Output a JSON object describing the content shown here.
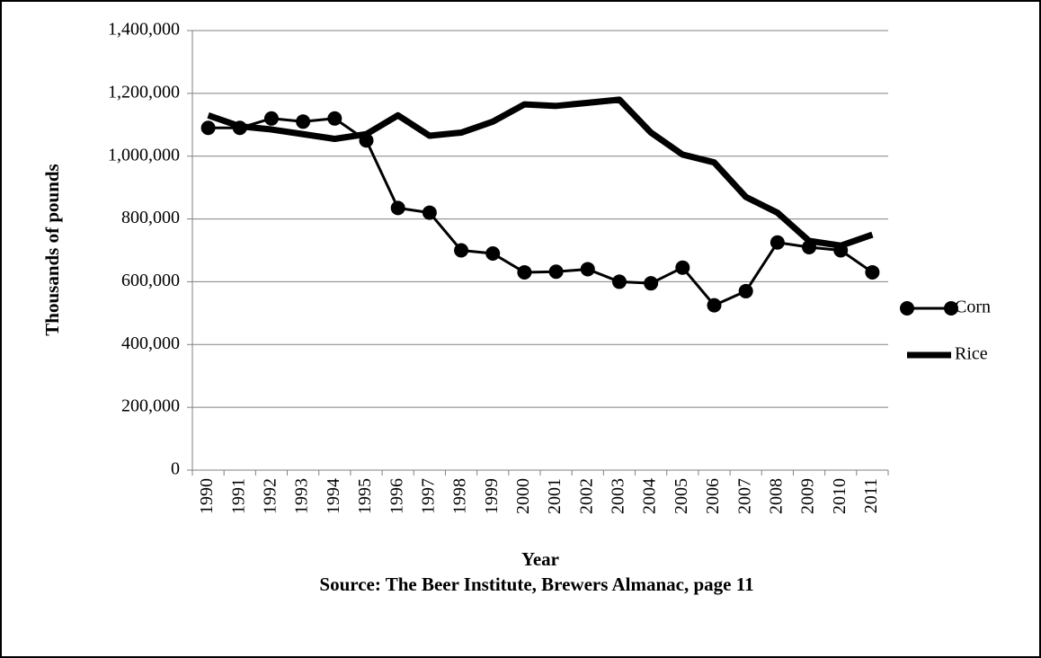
{
  "chart_data": {
    "type": "line",
    "x_label": "Year",
    "y_label": "Thousands of pounds",
    "source": "Source: The Beer Institute, Brewers Almanac, page 11",
    "categories": [
      "1990",
      "1991",
      "1992",
      "1993",
      "1994",
      "1995",
      "1996",
      "1997",
      "1998",
      "1999",
      "2000",
      "2001",
      "2002",
      "2003",
      "2004",
      "2005",
      "2006",
      "2007",
      "2008",
      "2009",
      "2010",
      "2011"
    ],
    "series": [
      {
        "name": "Corn",
        "color": "#000000",
        "marker": true,
        "values": [
          1090000,
          1090000,
          1120000,
          1110000,
          1120000,
          1050000,
          835000,
          820000,
          700000,
          690000,
          630000,
          632000,
          640000,
          600000,
          595000,
          645000,
          525000,
          570000,
          725000,
          710000,
          700000,
          630000
        ]
      },
      {
        "name": "Rice",
        "color": "#000000",
        "marker": false,
        "values": [
          1130000,
          1095000,
          1085000,
          1070000,
          1055000,
          1070000,
          1130000,
          1065000,
          1075000,
          1110000,
          1165000,
          1160000,
          1170000,
          1180000,
          1075000,
          1005000,
          980000,
          870000,
          820000,
          730000,
          715000,
          750000
        ]
      }
    ],
    "ylim": [
      0,
      1400000
    ],
    "yticks": [
      0,
      {
        "value": 200000,
        "label": "200,000"
      },
      {
        "value": 400000,
        "label": "400,000"
      },
      {
        "value": 600000,
        "label": "600,000"
      },
      {
        "value": 800000,
        "label": "800,000"
      },
      {
        "value": 1000000,
        "label": "1,000,000"
      },
      {
        "value": 1200000,
        "label": "1,200,000"
      },
      {
        "value": 1400000,
        "label": "1,400,000"
      }
    ],
    "grid": true,
    "legend": "right"
  }
}
